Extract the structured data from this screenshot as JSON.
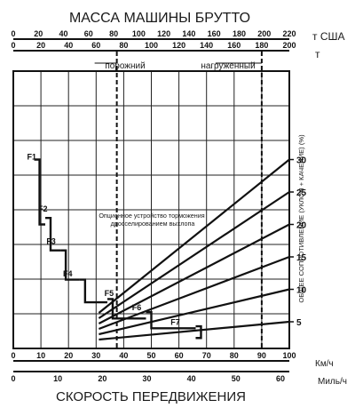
{
  "chart_data": {
    "type": "line",
    "title": "МАССА МАШИНЫ БРУТТО",
    "top_axis_us_tons": {
      "unit": "т США",
      "ticks": [
        "0",
        "20",
        "40",
        "60",
        "80",
        "100",
        "120",
        "140",
        "160",
        "180",
        "200",
        "220"
      ],
      "range": [
        0,
        220
      ]
    },
    "top_axis_metric_tons": {
      "unit": "т",
      "ticks": [
        "0",
        "20",
        "40",
        "60",
        "80",
        "100",
        "120",
        "140",
        "160",
        "180",
        "200"
      ],
      "range": [
        0,
        200
      ]
    },
    "empty_label": "порожний",
    "empty_weight_t": 75,
    "loaded_label": "нагруженный",
    "loaded_weight_t": 180,
    "bottom_axis_kmh": {
      "unit": "Км/ч",
      "ticks": [
        "0",
        "10",
        "20",
        "30",
        "40",
        "50",
        "60",
        "70",
        "80",
        "90",
        "100"
      ],
      "range": [
        0,
        100
      ]
    },
    "bottom_axis_mph": {
      "unit": "Миль/ч",
      "ticks": [
        "0",
        "10",
        "20",
        "30",
        "40",
        "50",
        "60"
      ],
      "range": [
        0,
        62
      ]
    },
    "xlabel": "СКОРОСТЬ ПЕРЕДВИЖЕНИЯ",
    "right_axis": {
      "label": "ОБЩЕЕ СОПРОТИВЛЕНИЕ (УКЛОН + КАЧЕНИЕ) (%)",
      "ticks": [
        "5",
        "10",
        "15",
        "20",
        "25",
        "30"
      ],
      "values": [
        5,
        10,
        15,
        20,
        25,
        30
      ]
    },
    "annotation": "Опционное устройство торможения дросселированием выхлопа",
    "gears": [
      {
        "name": "F1",
        "max_kmh": 9.5,
        "top": 30,
        "bottom": 20,
        "label_at": [
          5,
          30
        ]
      },
      {
        "name": "F2",
        "max_kmh": 13.5,
        "top": 21,
        "bottom": 16,
        "label_at": [
          9,
          22
        ]
      },
      {
        "name": "F3",
        "max_kmh": 19,
        "top": 16,
        "bottom": 11.5,
        "label_at": [
          12,
          17
        ]
      },
      {
        "name": "F4",
        "max_kmh": 26,
        "top": 11.5,
        "bottom": 8,
        "label_at": [
          18,
          12
        ]
      },
      {
        "name": "F5",
        "max_kmh": 36,
        "top": 8.5,
        "bottom": 5.5,
        "label_at": [
          33,
          9
        ]
      },
      {
        "name": "F6",
        "max_kmh": 50,
        "top": 6.5,
        "bottom": 4,
        "label_at": [
          43,
          6.8
        ]
      },
      {
        "name": "F7",
        "max_kmh": 68,
        "top": 4.3,
        "bottom": 2.5,
        "label_at": [
          57,
          4.5
        ]
      }
    ],
    "grade_lines": [
      5,
      10,
      15,
      20,
      25,
      30
    ]
  }
}
